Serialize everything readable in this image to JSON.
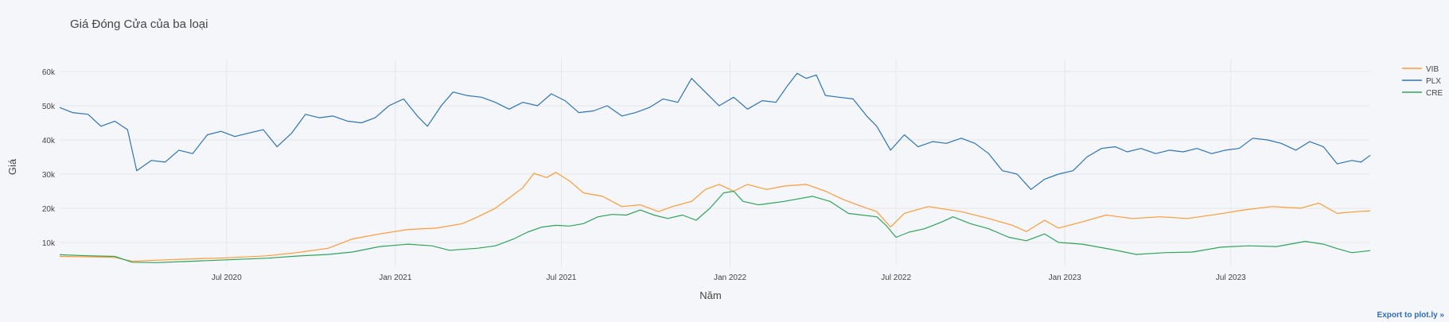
{
  "export_link_label": "Export to plot.ly »",
  "colors": {
    "VIB": "#ff9a35",
    "PLX": "#2d74b6",
    "CRE": "#2ca55a",
    "grid": "#e3e6ec",
    "background": "#f5f6f9"
  },
  "chart_data": {
    "type": "line",
    "title": "Giá Đóng Cửa của ba loại",
    "xlabel": "Năm",
    "ylabel": "Giá",
    "xlim": [
      "2020-01-01",
      "2023-11-30"
    ],
    "ylim": [
      3000,
      63500
    ],
    "x_ticks": [
      {
        "date": "2020-07-01",
        "label": "Jul 2020"
      },
      {
        "date": "2021-01-01",
        "label": "Jan 2021"
      },
      {
        "date": "2021-07-01",
        "label": "Jul 2021"
      },
      {
        "date": "2022-01-01",
        "label": "Jan 2022"
      },
      {
        "date": "2022-07-01",
        "label": "Jul 2022"
      },
      {
        "date": "2023-01-01",
        "label": "Jan 2023"
      },
      {
        "date": "2023-07-01",
        "label": "Jul 2023"
      }
    ],
    "y_ticks": [
      {
        "value": 10000,
        "label": "10k"
      },
      {
        "value": 20000,
        "label": "20k"
      },
      {
        "value": 30000,
        "label": "30k"
      },
      {
        "value": 40000,
        "label": "40k"
      },
      {
        "value": 50000,
        "label": "50k"
      },
      {
        "value": 60000,
        "label": "60k"
      }
    ],
    "grid": true,
    "legend_position": "right",
    "series": [
      {
        "name": "VIB",
        "points": [
          [
            "2020-01-01",
            5900
          ],
          [
            "2020-02-01",
            5800
          ],
          [
            "2020-03-01",
            5600
          ],
          [
            "2020-03-20",
            4500
          ],
          [
            "2020-04-15",
            4800
          ],
          [
            "2020-05-15",
            5100
          ],
          [
            "2020-07-01",
            5500
          ],
          [
            "2020-08-15",
            6100
          ],
          [
            "2020-09-15",
            7000
          ],
          [
            "2020-10-20",
            8300
          ],
          [
            "2020-11-15",
            11000
          ],
          [
            "2020-12-15",
            12500
          ],
          [
            "2021-01-15",
            13800
          ],
          [
            "2021-02-15",
            14200
          ],
          [
            "2021-03-15",
            15500
          ],
          [
            "2021-04-01",
            17500
          ],
          [
            "2021-04-20",
            20000
          ],
          [
            "2021-05-05",
            23000
          ],
          [
            "2021-05-20",
            26000
          ],
          [
            "2021-06-01",
            30200
          ],
          [
            "2021-06-15",
            29000
          ],
          [
            "2021-06-25",
            30500
          ],
          [
            "2021-07-10",
            28000
          ],
          [
            "2021-07-25",
            24500
          ],
          [
            "2021-08-15",
            23500
          ],
          [
            "2021-09-05",
            20500
          ],
          [
            "2021-09-25",
            21000
          ],
          [
            "2021-10-15",
            19000
          ],
          [
            "2021-10-30",
            20500
          ],
          [
            "2021-11-20",
            22000
          ],
          [
            "2021-12-05",
            25500
          ],
          [
            "2021-12-20",
            27000
          ],
          [
            "2022-01-05",
            25000
          ],
          [
            "2022-01-20",
            27000
          ],
          [
            "2022-02-10",
            25500
          ],
          [
            "2022-03-01",
            26500
          ],
          [
            "2022-03-25",
            27000
          ],
          [
            "2022-04-15",
            25000
          ],
          [
            "2022-05-05",
            22500
          ],
          [
            "2022-05-25",
            20500
          ],
          [
            "2022-06-10",
            19000
          ],
          [
            "2022-06-25",
            14500
          ],
          [
            "2022-07-10",
            18500
          ],
          [
            "2022-08-05",
            20500
          ],
          [
            "2022-09-10",
            19000
          ],
          [
            "2022-10-10",
            17000
          ],
          [
            "2022-11-05",
            15000
          ],
          [
            "2022-11-20",
            13200
          ],
          [
            "2022-12-10",
            16500
          ],
          [
            "2022-12-25",
            14200
          ],
          [
            "2023-01-20",
            16000
          ],
          [
            "2023-02-15",
            18000
          ],
          [
            "2023-03-15",
            17000
          ],
          [
            "2023-04-15",
            17500
          ],
          [
            "2023-05-15",
            17000
          ],
          [
            "2023-06-15",
            18200
          ],
          [
            "2023-07-15",
            19500
          ],
          [
            "2023-08-15",
            20500
          ],
          [
            "2023-09-15",
            20000
          ],
          [
            "2023-10-05",
            21500
          ],
          [
            "2023-10-25",
            18500
          ],
          [
            "2023-11-15",
            19000
          ],
          [
            "2023-11-30",
            19200
          ]
        ]
      },
      {
        "name": "PLX",
        "points": [
          [
            "2020-01-01",
            49500
          ],
          [
            "2020-01-15",
            48000
          ],
          [
            "2020-02-01",
            47500
          ],
          [
            "2020-02-15",
            44000
          ],
          [
            "2020-03-01",
            45500
          ],
          [
            "2020-03-15",
            43000
          ],
          [
            "2020-03-25",
            31000
          ],
          [
            "2020-04-10",
            34000
          ],
          [
            "2020-04-25",
            33500
          ],
          [
            "2020-05-10",
            37000
          ],
          [
            "2020-05-25",
            36000
          ],
          [
            "2020-06-10",
            41500
          ],
          [
            "2020-06-25",
            42500
          ],
          [
            "2020-07-10",
            41000
          ],
          [
            "2020-07-25",
            42000
          ],
          [
            "2020-08-10",
            43000
          ],
          [
            "2020-08-25",
            38000
          ],
          [
            "2020-09-10",
            42000
          ],
          [
            "2020-09-25",
            47500
          ],
          [
            "2020-10-10",
            46500
          ],
          [
            "2020-10-25",
            47000
          ],
          [
            "2020-11-10",
            45500
          ],
          [
            "2020-11-25",
            45000
          ],
          [
            "2020-12-10",
            46500
          ],
          [
            "2020-12-25",
            50000
          ],
          [
            "2021-01-10",
            52000
          ],
          [
            "2021-01-25",
            47000
          ],
          [
            "2021-02-05",
            44000
          ],
          [
            "2021-02-20",
            50000
          ],
          [
            "2021-03-05",
            54000
          ],
          [
            "2021-03-20",
            53000
          ],
          [
            "2021-04-05",
            52500
          ],
          [
            "2021-04-20",
            51000
          ],
          [
            "2021-05-05",
            49000
          ],
          [
            "2021-05-20",
            51000
          ],
          [
            "2021-06-05",
            50000
          ],
          [
            "2021-06-20",
            53500
          ],
          [
            "2021-07-05",
            51500
          ],
          [
            "2021-07-20",
            48000
          ],
          [
            "2021-08-05",
            48500
          ],
          [
            "2021-08-20",
            50000
          ],
          [
            "2021-09-05",
            47000
          ],
          [
            "2021-09-20",
            48000
          ],
          [
            "2021-10-05",
            49500
          ],
          [
            "2021-10-20",
            52000
          ],
          [
            "2021-11-05",
            51000
          ],
          [
            "2021-11-20",
            58000
          ],
          [
            "2021-12-05",
            54000
          ],
          [
            "2021-12-20",
            50000
          ],
          [
            "2022-01-05",
            52500
          ],
          [
            "2022-01-20",
            49000
          ],
          [
            "2022-02-05",
            51500
          ],
          [
            "2022-02-20",
            51000
          ],
          [
            "2022-03-05",
            56000
          ],
          [
            "2022-03-15",
            59500
          ],
          [
            "2022-03-25",
            58000
          ],
          [
            "2022-04-05",
            59000
          ],
          [
            "2022-04-15",
            53000
          ],
          [
            "2022-04-30",
            52500
          ],
          [
            "2022-05-15",
            52000
          ],
          [
            "2022-05-30",
            47000
          ],
          [
            "2022-06-10",
            44000
          ],
          [
            "2022-06-25",
            37000
          ],
          [
            "2022-07-10",
            41500
          ],
          [
            "2022-07-25",
            38000
          ],
          [
            "2022-08-10",
            39500
          ],
          [
            "2022-08-25",
            39000
          ],
          [
            "2022-09-10",
            40500
          ],
          [
            "2022-09-25",
            39000
          ],
          [
            "2022-10-10",
            36000
          ],
          [
            "2022-10-25",
            31000
          ],
          [
            "2022-11-10",
            30000
          ],
          [
            "2022-11-25",
            25500
          ],
          [
            "2022-12-10",
            28500
          ],
          [
            "2022-12-25",
            30000
          ],
          [
            "2023-01-10",
            31000
          ],
          [
            "2023-01-25",
            35000
          ],
          [
            "2023-02-10",
            37500
          ],
          [
            "2023-02-25",
            38000
          ],
          [
            "2023-03-10",
            36500
          ],
          [
            "2023-03-25",
            37500
          ],
          [
            "2023-04-10",
            36000
          ],
          [
            "2023-04-25",
            37000
          ],
          [
            "2023-05-10",
            36500
          ],
          [
            "2023-05-25",
            37500
          ],
          [
            "2023-06-10",
            36000
          ],
          [
            "2023-06-25",
            37000
          ],
          [
            "2023-07-10",
            37500
          ],
          [
            "2023-07-25",
            40500
          ],
          [
            "2023-08-10",
            40000
          ],
          [
            "2023-08-25",
            39000
          ],
          [
            "2023-09-10",
            37000
          ],
          [
            "2023-09-25",
            39500
          ],
          [
            "2023-10-10",
            38000
          ],
          [
            "2023-10-25",
            33000
          ],
          [
            "2023-11-10",
            34000
          ],
          [
            "2023-11-20",
            33500
          ],
          [
            "2023-11-30",
            35500
          ]
        ]
      },
      {
        "name": "CRE",
        "points": [
          [
            "2020-01-01",
            6400
          ],
          [
            "2020-02-01",
            6100
          ],
          [
            "2020-03-01",
            5900
          ],
          [
            "2020-03-20",
            4200
          ],
          [
            "2020-04-15",
            4100
          ],
          [
            "2020-05-15",
            4400
          ],
          [
            "2020-07-01",
            4900
          ],
          [
            "2020-08-15",
            5400
          ],
          [
            "2020-09-15",
            6000
          ],
          [
            "2020-10-20",
            6500
          ],
          [
            "2020-11-15",
            7200
          ],
          [
            "2020-12-15",
            8800
          ],
          [
            "2021-01-15",
            9500
          ],
          [
            "2021-02-10",
            9000
          ],
          [
            "2021-03-01",
            7700
          ],
          [
            "2021-04-01",
            8300
          ],
          [
            "2021-04-20",
            9000
          ],
          [
            "2021-05-10",
            11000
          ],
          [
            "2021-05-25",
            13000
          ],
          [
            "2021-06-10",
            14500
          ],
          [
            "2021-06-25",
            15000
          ],
          [
            "2021-07-10",
            14800
          ],
          [
            "2021-07-25",
            15500
          ],
          [
            "2021-08-10",
            17500
          ],
          [
            "2021-08-25",
            18200
          ],
          [
            "2021-09-10",
            18000
          ],
          [
            "2021-09-25",
            19500
          ],
          [
            "2021-10-10",
            18000
          ],
          [
            "2021-10-25",
            17000
          ],
          [
            "2021-11-10",
            18000
          ],
          [
            "2021-11-25",
            16500
          ],
          [
            "2021-12-10",
            20000
          ],
          [
            "2021-12-25",
            24500
          ],
          [
            "2022-01-05",
            25000
          ],
          [
            "2022-01-15",
            22000
          ],
          [
            "2022-02-01",
            21000
          ],
          [
            "2022-03-01",
            22000
          ],
          [
            "2022-04-01",
            23500
          ],
          [
            "2022-04-20",
            22000
          ],
          [
            "2022-05-10",
            18500
          ],
          [
            "2022-05-25",
            18000
          ],
          [
            "2022-06-10",
            17500
          ],
          [
            "2022-06-20",
            15000
          ],
          [
            "2022-07-01",
            11500
          ],
          [
            "2022-07-15",
            13000
          ],
          [
            "2022-08-01",
            14000
          ],
          [
            "2022-08-20",
            16000
          ],
          [
            "2022-09-01",
            17500
          ],
          [
            "2022-09-20",
            15500
          ],
          [
            "2022-10-10",
            14000
          ],
          [
            "2022-11-01",
            11500
          ],
          [
            "2022-11-20",
            10500
          ],
          [
            "2022-12-10",
            12500
          ],
          [
            "2022-12-25",
            10000
          ],
          [
            "2023-01-20",
            9500
          ],
          [
            "2023-02-20",
            8000
          ],
          [
            "2023-03-20",
            6500
          ],
          [
            "2023-04-20",
            7000
          ],
          [
            "2023-05-20",
            7200
          ],
          [
            "2023-06-20",
            8600
          ],
          [
            "2023-07-20",
            9000
          ],
          [
            "2023-08-20",
            8800
          ],
          [
            "2023-09-20",
            10300
          ],
          [
            "2023-10-10",
            9500
          ],
          [
            "2023-10-25",
            8200
          ],
          [
            "2023-11-10",
            7000
          ],
          [
            "2023-11-30",
            7600
          ]
        ]
      }
    ]
  }
}
